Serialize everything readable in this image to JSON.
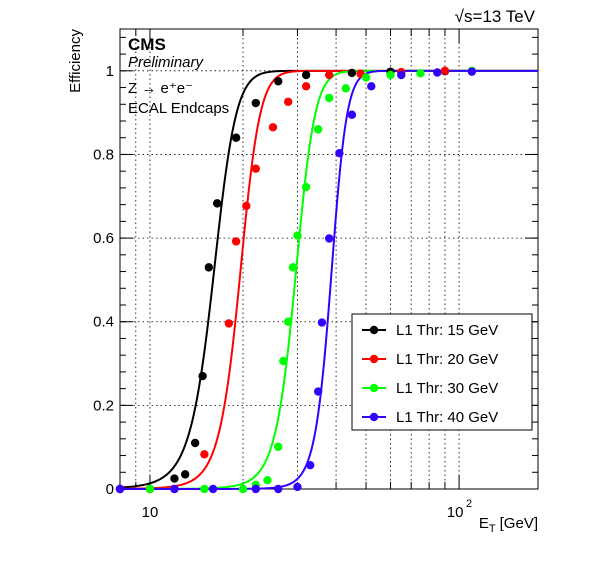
{
  "chart_data": {
    "type": "scatter",
    "title": "",
    "xlabel_main": "E",
    "xlabel_sub": "T",
    "xlabel_unit": "[GeV]",
    "ylabel": "Efficiency",
    "xscale": "log",
    "xlim": [
      8,
      180
    ],
    "ylim": [
      0,
      1.1
    ],
    "x_tick_labels": [
      "10",
      "10",
      "2"
    ],
    "y_tick_labels": [
      "0",
      "0.2",
      "0.4",
      "0.6",
      "0.8",
      "1"
    ],
    "grid": true,
    "legend_position": "bottom-right",
    "annotations": {
      "energy": "√s=13 TeV",
      "experiment": "CMS",
      "status": "Preliminary",
      "process": "Z → e⁺e⁻",
      "region": "ECAL Endcaps"
    },
    "series": [
      {
        "name": "L1 Thr: 15 GeV",
        "color": "#000000",
        "fit_threshold": 16.0,
        "fit_width": 1.4,
        "points": [
          {
            "x": 8,
            "y": 0.0
          },
          {
            "x": 10,
            "y": 0.0
          },
          {
            "x": 12,
            "y": 0.025
          },
          {
            "x": 13,
            "y": 0.035
          },
          {
            "x": 14,
            "y": 0.11
          },
          {
            "x": 14.8,
            "y": 0.27
          },
          {
            "x": 15.5,
            "y": 0.53
          },
          {
            "x": 16.5,
            "y": 0.683
          },
          {
            "x": 19,
            "y": 0.84
          },
          {
            "x": 22,
            "y": 0.923
          },
          {
            "x": 26,
            "y": 0.975
          },
          {
            "x": 32,
            "y": 0.99
          },
          {
            "x": 45,
            "y": 0.995
          },
          {
            "x": 60,
            "y": 0.998
          },
          {
            "x": 90,
            "y": 0.999
          }
        ]
      },
      {
        "name": "L1 Thr: 20 GeV",
        "color": "#ff0000",
        "fit_threshold": 19.5,
        "fit_width": 1.5,
        "points": [
          {
            "x": 8,
            "y": 0.0
          },
          {
            "x": 10,
            "y": 0.0
          },
          {
            "x": 12,
            "y": 0.0
          },
          {
            "x": 15,
            "y": 0.083
          },
          {
            "x": 18,
            "y": 0.396
          },
          {
            "x": 19,
            "y": 0.592
          },
          {
            "x": 20.5,
            "y": 0.677
          },
          {
            "x": 22,
            "y": 0.766
          },
          {
            "x": 25,
            "y": 0.865
          },
          {
            "x": 28,
            "y": 0.926
          },
          {
            "x": 32,
            "y": 0.963
          },
          {
            "x": 38,
            "y": 0.99
          },
          {
            "x": 48,
            "y": 0.993
          },
          {
            "x": 65,
            "y": 0.997
          },
          {
            "x": 90,
            "y": 1.0
          }
        ]
      },
      {
        "name": "L1 Thr: 30 GeV",
        "color": "#00ff00",
        "fit_threshold": 29.5,
        "fit_width": 2.2,
        "points": [
          {
            "x": 10,
            "y": 0.0
          },
          {
            "x": 15,
            "y": 0.0
          },
          {
            "x": 20,
            "y": 0.0
          },
          {
            "x": 22,
            "y": 0.01
          },
          {
            "x": 24,
            "y": 0.021
          },
          {
            "x": 26,
            "y": 0.101
          },
          {
            "x": 27,
            "y": 0.306
          },
          {
            "x": 28,
            "y": 0.4
          },
          {
            "x": 29,
            "y": 0.53
          },
          {
            "x": 30,
            "y": 0.606
          },
          {
            "x": 32,
            "y": 0.722
          },
          {
            "x": 35,
            "y": 0.86
          },
          {
            "x": 38,
            "y": 0.935
          },
          {
            "x": 43,
            "y": 0.958
          },
          {
            "x": 50,
            "y": 0.984
          },
          {
            "x": 60,
            "y": 0.99
          },
          {
            "x": 75,
            "y": 0.994
          },
          {
            "x": 110,
            "y": 1.0
          }
        ]
      },
      {
        "name": "L1 Thr: 40 GeV",
        "color": "#3300ff",
        "fit_threshold": 38.5,
        "fit_width": 2.3,
        "points": [
          {
            "x": 8,
            "y": 0.0
          },
          {
            "x": 12,
            "y": 0.0
          },
          {
            "x": 16,
            "y": 0.0
          },
          {
            "x": 22,
            "y": 0.0
          },
          {
            "x": 26,
            "y": 0.0
          },
          {
            "x": 30,
            "y": 0.005
          },
          {
            "x": 33,
            "y": 0.057
          },
          {
            "x": 35,
            "y": 0.233
          },
          {
            "x": 36,
            "y": 0.398
          },
          {
            "x": 38,
            "y": 0.599
          },
          {
            "x": 41,
            "y": 0.803
          },
          {
            "x": 45,
            "y": 0.895
          },
          {
            "x": 52,
            "y": 0.963
          },
          {
            "x": 65,
            "y": 0.99
          },
          {
            "x": 85,
            "y": 0.996
          },
          {
            "x": 110,
            "y": 0.998
          }
        ]
      }
    ]
  }
}
